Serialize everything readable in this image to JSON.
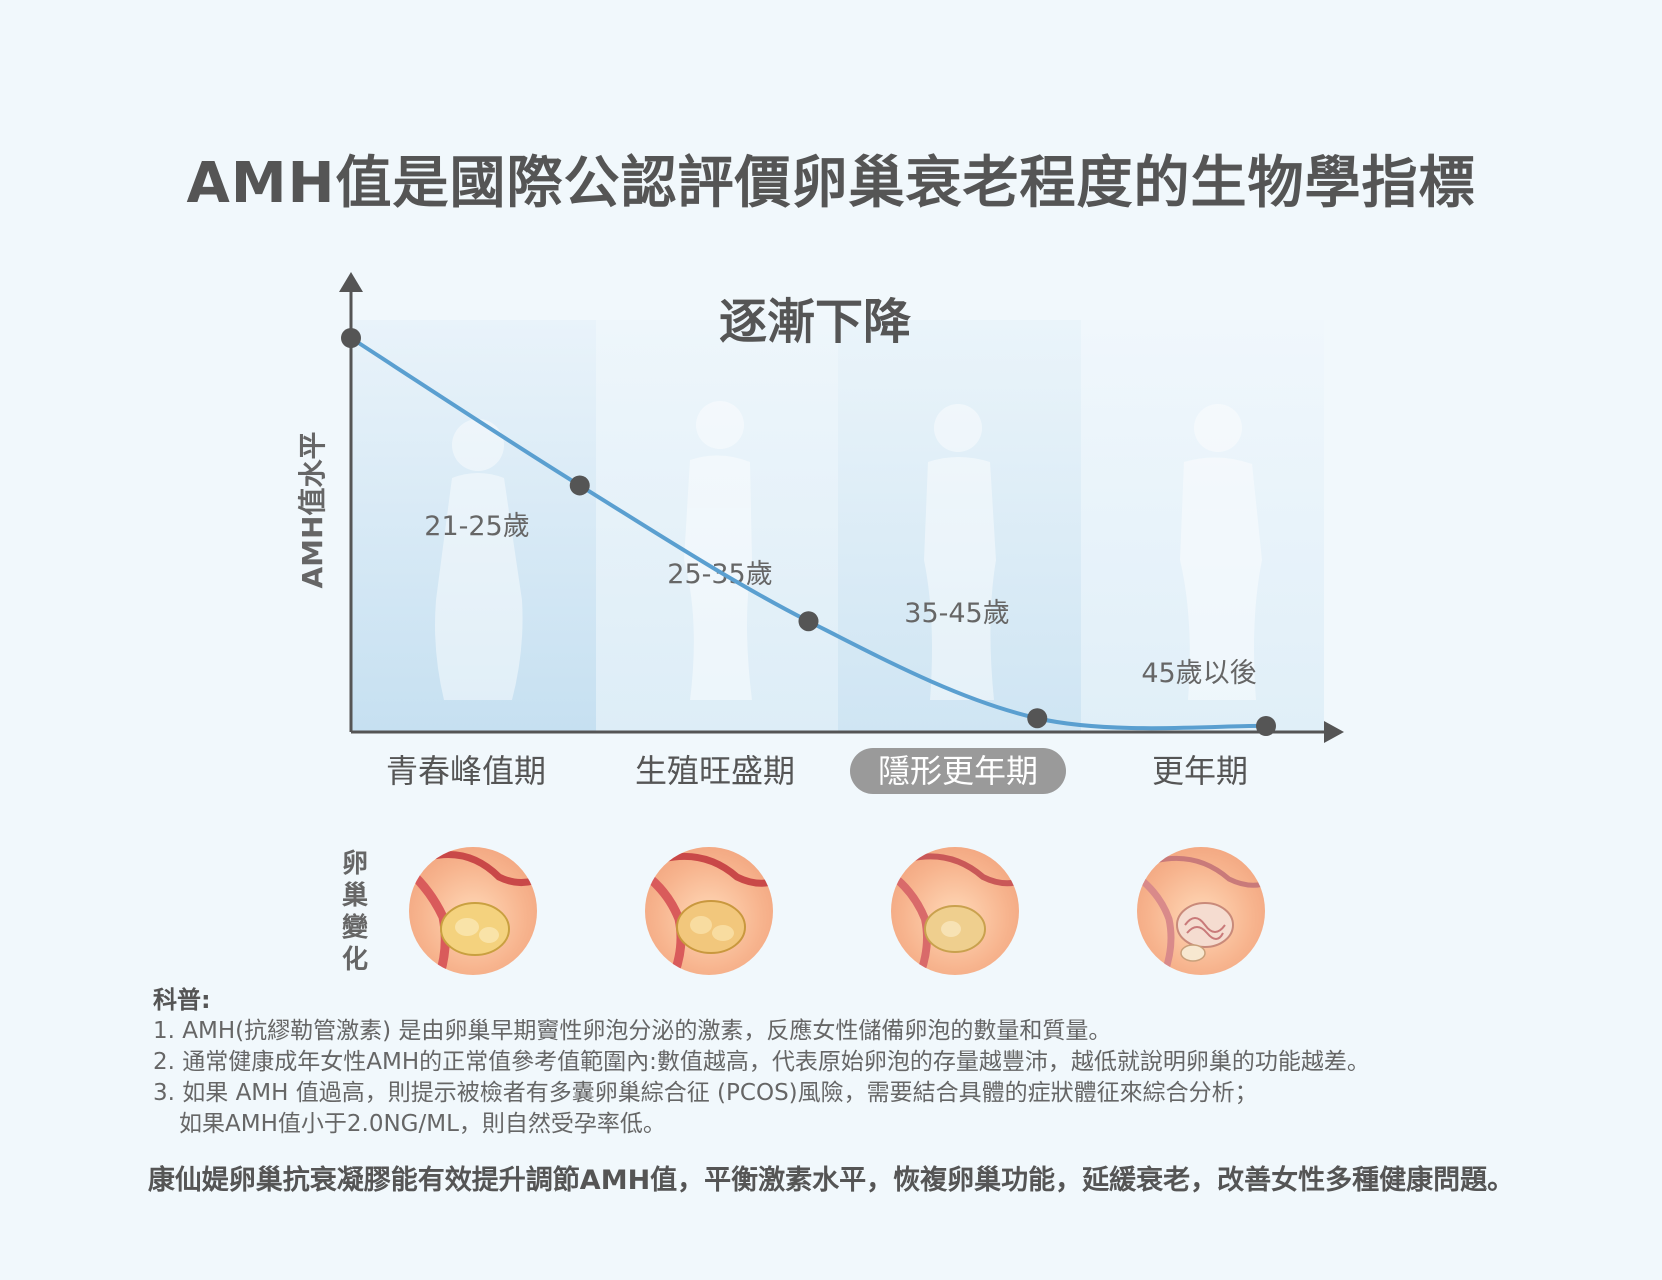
{
  "title": "AMH值是國際公認評價卵巢衰老程度的生物學指標",
  "chart_data": {
    "type": "line",
    "title": "逐漸下降",
    "ylabel": "AMH值水平",
    "categories": [
      "青春峰值期",
      "生殖旺盛期",
      "隱形更年期",
      "更年期"
    ],
    "highlighted_category": "隱形更年期",
    "age_labels": [
      "21-25歲",
      "25-35歲",
      "35-45歲",
      "45歲以後"
    ],
    "points": [
      {
        "x": 0,
        "y": 1.0
      },
      {
        "x": 1,
        "y": 0.62
      },
      {
        "x": 2,
        "y": 0.27
      },
      {
        "x": 3,
        "y": 0.02
      },
      {
        "x": 4,
        "y": 0.0
      }
    ],
    "xlim": [
      0,
      4
    ],
    "ylim": [
      0,
      1
    ],
    "colors": {
      "line": "#5a9fd0",
      "marker": "#555555",
      "axis": "#555555",
      "highlight_pill": "#9a9a9a"
    }
  },
  "ovary_section": {
    "label_chars": [
      "卵",
      "巢",
      "變",
      "化"
    ],
    "icons": [
      "ovary-healthy-icon",
      "ovary-prime-icon",
      "ovary-declining-icon",
      "ovary-aged-icon"
    ]
  },
  "notes": {
    "heading": "科普:",
    "lines": [
      "1. AMH(抗繆勒管激素) 是由卵巢早期竇性卵泡分泌的激素，反應女性儲備卵泡的數量和質量。",
      "2. 通常健康成年女性AMH的正常值參考值範圍內:數值越高，代表原始卵泡的存量越豐沛，越低就說明卵巢的功能越差。",
      "3. 如果 AMH 值過高，則提示被檢者有多囊卵巢綜合征 (PCOS)風險，需要結合具體的症狀體征來綜合分析；"
    ],
    "continuation": "如果AMH值小于2.0NG/ML，則自然受孕率低。"
  },
  "footer": "康仙媞卵巢抗衰凝膠能有效提升調節AMH值，平衡激素水平，恢複卵巢功能，延緩衰老，改善女性多種健康問題。"
}
